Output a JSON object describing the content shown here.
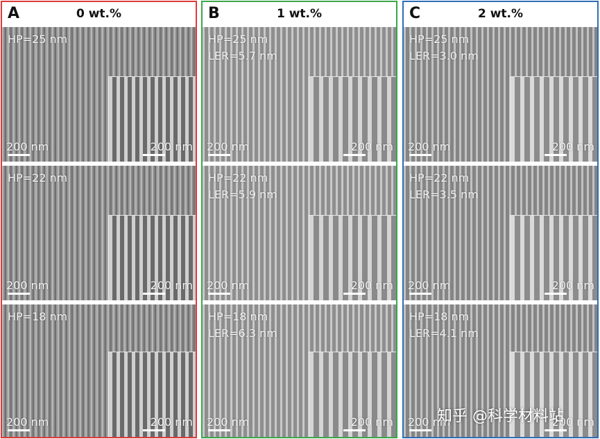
{
  "panels": [
    {
      "letter": "A",
      "title": "0 wt.%",
      "border_color": "#e0393a",
      "images": [
        {
          "hp": "HP=25 nm",
          "scale": "200 nm",
          "inset_scale": "200 nm"
        },
        {
          "hp": "HP=22 nm",
          "scale": "200 nm",
          "inset_scale": "200 nm"
        },
        {
          "hp": "HP=18 nm",
          "scale": "200 nm",
          "inset_scale": "200 nm"
        }
      ]
    },
    {
      "letter": "B",
      "title": "1 wt.%",
      "border_color": "#3aa64a",
      "images": [
        {
          "hp": "HP=25 nm",
          "ler": "LER=5.7 nm",
          "scale": "200 nm",
          "inset_scale": "200 nm"
        },
        {
          "hp": "HP=22 nm",
          "ler": "LER=5.9 nm",
          "scale": "200 nm",
          "inset_scale": "200 nm"
        },
        {
          "hp": "HP=18 nm",
          "ler": "LER=6.3 nm",
          "scale": "200 nm",
          "inset_scale": "200 nm"
        }
      ]
    },
    {
      "letter": "C",
      "title": "2 wt.%",
      "border_color": "#2f6db5",
      "images": [
        {
          "hp": "HP=25 nm",
          "ler": "LER=3.0 nm",
          "scale": "200 nm",
          "inset_scale": "200 nm"
        },
        {
          "hp": "HP=22 nm",
          "ler": "LER=3.5 nm",
          "scale": "200 nm",
          "inset_scale": "200 nm"
        },
        {
          "hp": "HP=18 nm",
          "ler": "LER=4.1 nm",
          "scale": "200 nm",
          "inset_scale": "200 nm"
        }
      ]
    }
  ],
  "watermark": "知乎 @科学材料站"
}
